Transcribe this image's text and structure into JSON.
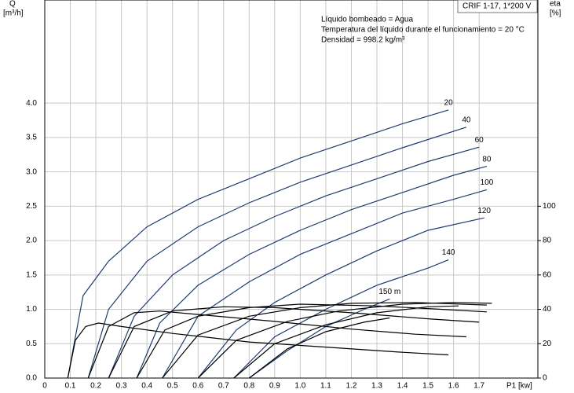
{
  "chart_data": {
    "type": "line",
    "model": "CRIF 1-17, 1*200 V",
    "annotations": [
      "Líquido bombeado = Agua",
      "Temperatura del líquido durante el funcionamiento = 20 °C",
      "Densidad = 998.2 kg/m³"
    ],
    "ylabel": "Q",
    "ylabel_unit": "[m³/h]",
    "y2label": "eta",
    "y2label_unit": "[%]",
    "xlabel": "P1 [kw]",
    "xlim": [
      0,
      1.93
    ],
    "xticks": [
      0,
      0.1,
      0.2,
      0.3,
      0.4,
      0.5,
      0.6,
      0.7,
      0.8,
      0.9,
      {
        "value": 1.0,
        "label": "1.0"
      },
      1.1,
      1.2,
      1.3,
      1.4,
      1.5,
      1.6,
      1.7
    ],
    "ylim": [
      0,
      5.5
    ],
    "yticks": [
      {
        "value": 0,
        "label": "0.0"
      },
      0.5,
      {
        "value": 1.0,
        "label": "1.0"
      },
      1.5,
      {
        "value": 2.0,
        "label": "2.0"
      },
      2.5,
      {
        "value": 3.0,
        "label": "3.0"
      },
      3.5,
      {
        "value": 4.0,
        "label": "4.0"
      }
    ],
    "y2lim": [
      0,
      220
    ],
    "y2ticks": [
      0,
      20,
      40,
      60,
      80,
      100
    ],
    "grid": true,
    "series": [
      {
        "name": "20",
        "color": "#1f3c6e",
        "x": [
          0.09,
          0.15,
          0.25,
          0.4,
          0.6,
          0.8,
          1.0,
          1.2,
          1.4,
          1.58
        ],
        "values": [
          0,
          1.2,
          1.7,
          2.2,
          2.6,
          2.9,
          3.2,
          3.45,
          3.7,
          3.9
        ]
      },
      {
        "name": "40",
        "color": "#1f3c6e",
        "x": [
          0.17,
          0.25,
          0.4,
          0.6,
          0.8,
          1.0,
          1.2,
          1.4,
          1.65
        ],
        "values": [
          0,
          1.0,
          1.7,
          2.2,
          2.55,
          2.85,
          3.1,
          3.35,
          3.65
        ]
      },
      {
        "name": "60",
        "color": "#1f3c6e",
        "x": [
          0.25,
          0.35,
          0.5,
          0.7,
          0.9,
          1.1,
          1.3,
          1.5,
          1.7
        ],
        "values": [
          0,
          0.9,
          1.5,
          2.0,
          2.35,
          2.65,
          2.9,
          3.15,
          3.36
        ]
      },
      {
        "name": "80",
        "color": "#1f3c6e",
        "x": [
          0.36,
          0.45,
          0.6,
          0.8,
          1.0,
          1.2,
          1.4,
          1.6,
          1.73
        ],
        "values": [
          0,
          0.8,
          1.35,
          1.8,
          2.15,
          2.45,
          2.7,
          2.95,
          3.08
        ]
      },
      {
        "name": "100",
        "color": "#1f3c6e",
        "x": [
          0.46,
          0.6,
          0.8,
          1.0,
          1.2,
          1.4,
          1.6,
          1.73
        ],
        "values": [
          0,
          0.9,
          1.4,
          1.8,
          2.1,
          2.4,
          2.6,
          2.74
        ]
      },
      {
        "name": "120",
        "color": "#1f3c6e",
        "x": [
          0.6,
          0.75,
          0.9,
          1.1,
          1.3,
          1.5,
          1.72
        ],
        "values": [
          0,
          0.7,
          1.1,
          1.5,
          1.85,
          2.15,
          2.33
        ]
      },
      {
        "name": "140",
        "color": "#1f3c6e",
        "x": [
          0.74,
          0.9,
          1.1,
          1.3,
          1.5,
          1.58
        ],
        "values": [
          0,
          0.6,
          1.0,
          1.35,
          1.6,
          1.72
        ]
      },
      {
        "name": "150 m",
        "color": "#1f3c6e",
        "x": [
          0.8,
          0.95,
          1.1,
          1.25,
          1.35
        ],
        "values": [
          0,
          0.4,
          0.75,
          1.0,
          1.15
        ]
      },
      {
        "color": "#000000",
        "axis": "y2",
        "x": [
          0.09,
          0.12,
          0.16,
          0.21,
          0.3,
          0.5,
          0.8,
          1.1,
          1.4,
          1.58
        ],
        "values": [
          0,
          22,
          30,
          32,
          30,
          26,
          21,
          18,
          15,
          13.5
        ]
      },
      {
        "color": "#000000",
        "axis": "y2",
        "x": [
          0.17,
          0.25,
          0.35,
          0.45,
          0.6,
          0.9,
          1.2,
          1.45,
          1.65
        ],
        "values": [
          0,
          30,
          38,
          39,
          37,
          33,
          28.5,
          25.5,
          24
        ]
      },
      {
        "color": "#000000",
        "axis": "y2",
        "x": [
          0.25,
          0.35,
          0.5,
          0.7,
          0.9,
          1.2,
          1.5,
          1.7
        ],
        "values": [
          0,
          30,
          39,
          41.5,
          41,
          38,
          34.5,
          32.5
        ]
      },
      {
        "color": "#000000",
        "axis": "y2",
        "x": [
          0.36,
          0.47,
          0.6,
          0.8,
          1.0,
          1.3,
          1.55,
          1.73
        ],
        "values": [
          0,
          28,
          36,
          41,
          43,
          42,
          40,
          38.5
        ]
      },
      {
        "color": "#000000",
        "axis": "y2",
        "x": [
          0.46,
          0.6,
          0.8,
          1.0,
          1.2,
          1.45,
          1.73
        ],
        "values": [
          0,
          25,
          36,
          41,
          43.5,
          44,
          42.5
        ]
      },
      {
        "color": "#000000",
        "axis": "y2",
        "x": [
          0.6,
          0.75,
          0.95,
          1.15,
          1.4,
          1.6,
          1.75
        ],
        "values": [
          0,
          22,
          33,
          39,
          43,
          44,
          43.5
        ]
      },
      {
        "color": "#000000",
        "axis": "y2",
        "x": [
          0.74,
          0.9,
          1.1,
          1.3,
          1.5,
          1.62
        ],
        "values": [
          0,
          20,
          31,
          38,
          41.5,
          42
        ]
      },
      {
        "color": "#000000",
        "axis": "y2",
        "x": [
          0.8,
          0.95,
          1.1,
          1.25,
          1.35
        ],
        "values": [
          0,
          17,
          27,
          32.5,
          35
        ]
      }
    ]
  }
}
